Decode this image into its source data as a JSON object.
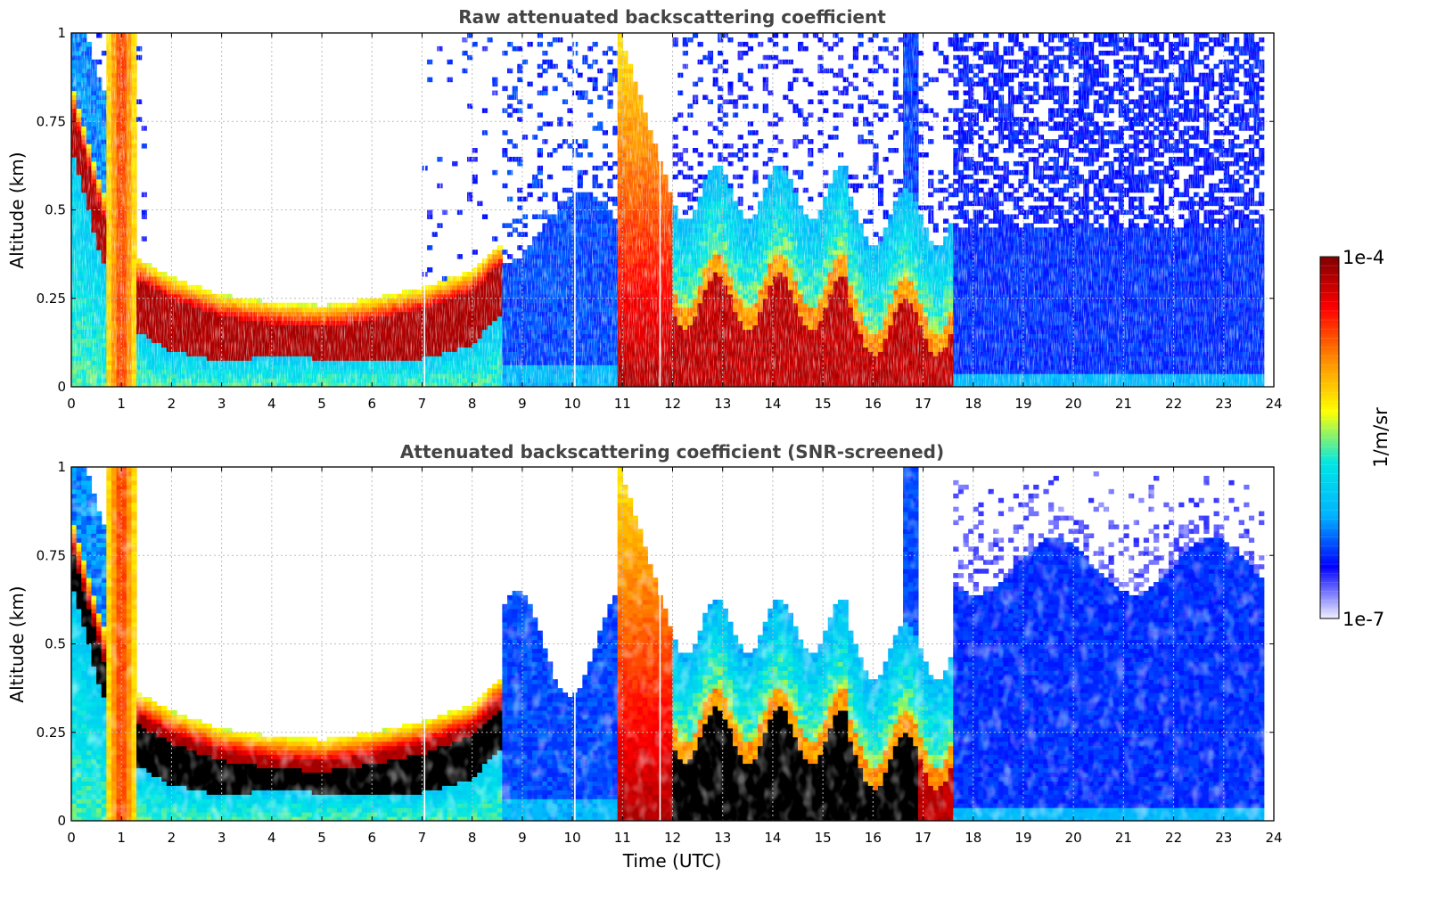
{
  "chart_data": [
    {
      "type": "heatmap",
      "title": "Raw attenuated backscattering coefficient",
      "xlabel": "",
      "ylabel": "Altitude (km)",
      "xlim": [
        0,
        24
      ],
      "ylim": [
        0,
        1
      ],
      "x_ticks": [
        "0",
        "1",
        "2",
        "3",
        "4",
        "5",
        "6",
        "7",
        "8",
        "9",
        "10",
        "11",
        "12",
        "13",
        "14",
        "15",
        "16",
        "17",
        "18",
        "19",
        "20",
        "21",
        "22",
        "23",
        "24"
      ],
      "y_ticks": [
        "0",
        "0.25",
        "0.5",
        "0.75",
        "1"
      ],
      "grid": true,
      "features": {
        "boundary_layer_top_km": [
          {
            "time": 0.0,
            "alt": 0.8
          },
          {
            "time": 0.5,
            "alt": 0.55
          },
          {
            "time": 1.0,
            "alt": 0.33
          },
          {
            "time": 2.0,
            "alt": 0.25
          },
          {
            "time": 3.0,
            "alt": 0.2
          },
          {
            "time": 4.0,
            "alt": 0.18
          },
          {
            "time": 5.0,
            "alt": 0.17
          },
          {
            "time": 6.0,
            "alt": 0.19
          },
          {
            "time": 7.0,
            "alt": 0.22
          },
          {
            "time": 8.0,
            "alt": 0.27
          },
          {
            "time": 8.5,
            "alt": 0.34
          }
        ],
        "fog_columns_utc": [
          [
            0.75,
            1.25
          ],
          [
            10.95,
            12.0
          ]
        ],
        "noise_region_utc": [
          17.6,
          23.8
        ],
        "data_end_utc": 23.8
      }
    },
    {
      "type": "heatmap",
      "title": "Attenuated backscattering coefficient (SNR-screened)",
      "xlabel": "Time (UTC)",
      "ylabel": "Altitude (km)",
      "xlim": [
        0,
        24
      ],
      "ylim": [
        0,
        1
      ],
      "x_ticks": [
        "0",
        "1",
        "2",
        "3",
        "4",
        "5",
        "6",
        "7",
        "8",
        "9",
        "10",
        "11",
        "12",
        "13",
        "14",
        "15",
        "16",
        "17",
        "18",
        "19",
        "20",
        "21",
        "22",
        "23",
        "24"
      ],
      "y_ticks": [
        "0",
        "0.25",
        "0.5",
        "0.75",
        "1"
      ],
      "grid": true,
      "screened_color": "#ffffff",
      "saturated_color": "#000000"
    }
  ],
  "colorbar": {
    "label": "1/m/sr",
    "max_label": "1e-4",
    "min_label": "1e-7",
    "colormap": [
      "#f0f0ff",
      "#0000ff",
      "#00b4ff",
      "#00e6e6",
      "#ffff00",
      "#ff8c00",
      "#ff0000",
      "#800000"
    ]
  }
}
